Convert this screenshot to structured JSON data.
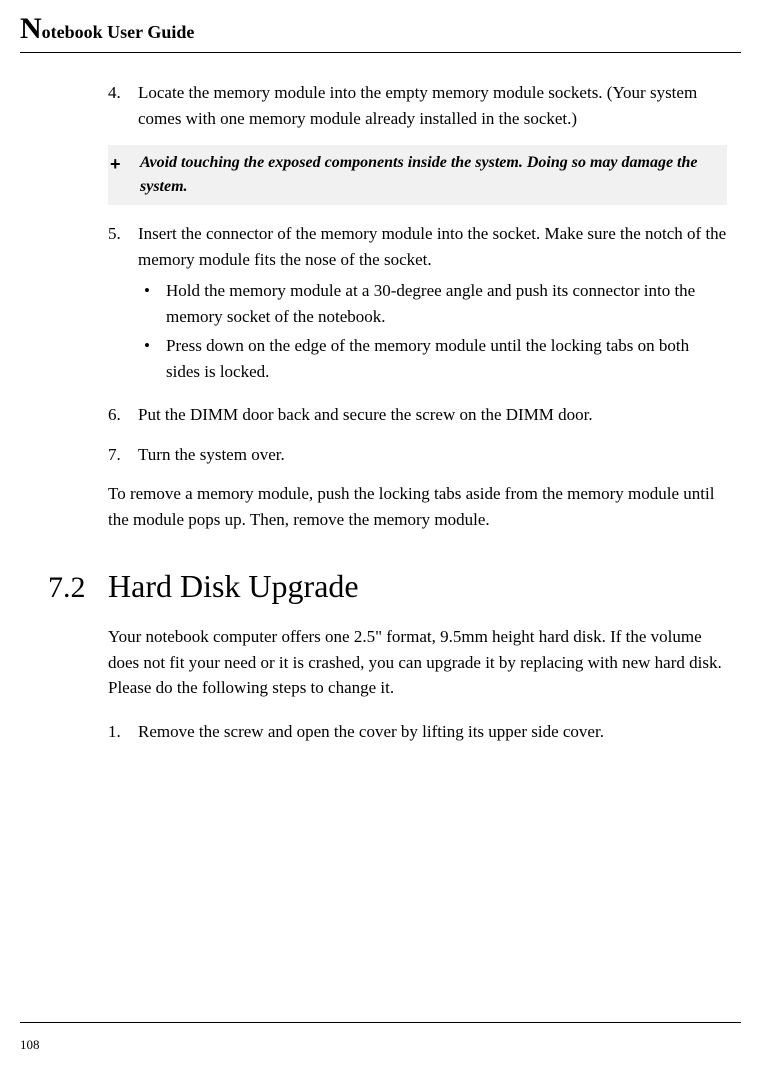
{
  "header": {
    "title_prefix_big": "N",
    "title_rest": "otebook User Guide"
  },
  "items": {
    "step4_num": "4.",
    "step4_text": "Locate the memory module into the empty memory module sockets. (Your system comes with one memory module already installed in the socket.)",
    "note_mark": "+",
    "note_text": "Avoid touching the exposed components inside the system. Doing so may damage the system.",
    "step5_num": "5.",
    "step5_intro": "Insert the connector of the memory module into the socket. Make sure the notch of the memory module fits the nose of the socket.",
    "step5_b1": "Hold the memory module at a 30-degree angle and push its connector into the memory socket of the notebook.",
    "step5_b2": "Press down on the edge of the memory module until the locking tabs on both sides is locked.",
    "step6_num": "6.",
    "step6_text": "Put the DIMM door back and secure the screw on the DIMM door.",
    "step7_num": "7.",
    "step7_text": "Turn the system over.",
    "remove_para": "To remove a memory module, push the locking tabs aside from the memory module until the module pops up. Then, remove the memory module."
  },
  "section": {
    "num": "7.2",
    "title": "Hard Disk Upgrade",
    "intro": "Your notebook computer offers one 2.5\" format, 9.5mm height hard disk. If the volume does not fit your need or it is crashed, you can upgrade it by replacing with new hard disk. Please do the following steps to change it.",
    "step1_num": "1.",
    "step1_text": "Remove the screw and open the cover by lifting its upper side cover."
  },
  "footer": {
    "page_number": "108"
  },
  "colors": {
    "background": "#ffffff",
    "text": "#000000",
    "note_bg": "#f1f1f1",
    "rule": "#000000"
  },
  "bullet_glyph": "•"
}
